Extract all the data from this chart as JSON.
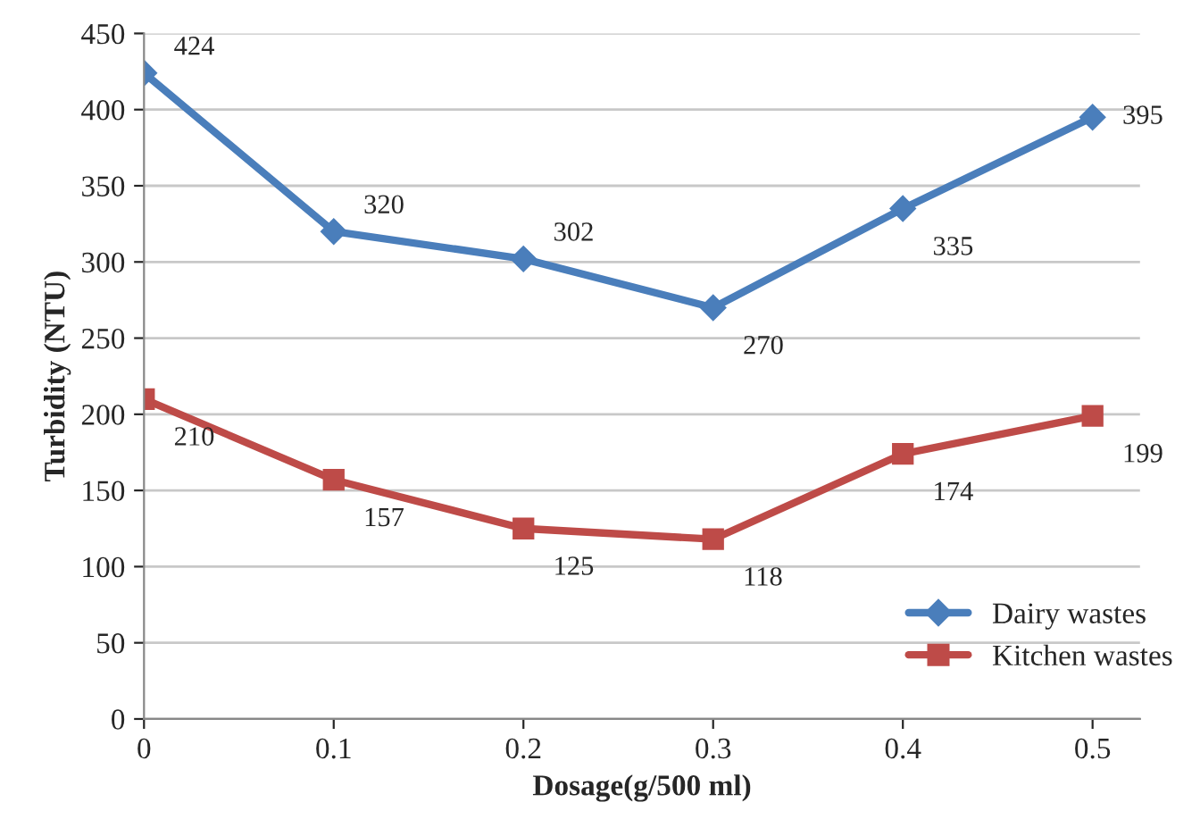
{
  "chart_data": {
    "type": "line",
    "xlabel": "Dosage(g/500 ml)",
    "ylabel": "Turbidity (NTU)",
    "categories": [
      "0",
      "0.1",
      "0.2",
      "0.3",
      "0.4",
      "0.5"
    ],
    "series": [
      {
        "name": "Dairy wastes",
        "color": "#4a7ebb",
        "values": [
          424,
          320,
          302,
          270,
          335,
          395
        ],
        "marker": "diamond"
      },
      {
        "name": "Kitchen wastes",
        "color": "#be4b48",
        "values": [
          210,
          157,
          125,
          118,
          174,
          199
        ],
        "marker": "square"
      }
    ],
    "ylim": [
      0,
      450
    ],
    "yticks": [
      0,
      50,
      100,
      150,
      200,
      250,
      300,
      350,
      400,
      450
    ],
    "grid": "y",
    "legend": "bottom right",
    "data_labels": true,
    "line_style": "solid"
  }
}
